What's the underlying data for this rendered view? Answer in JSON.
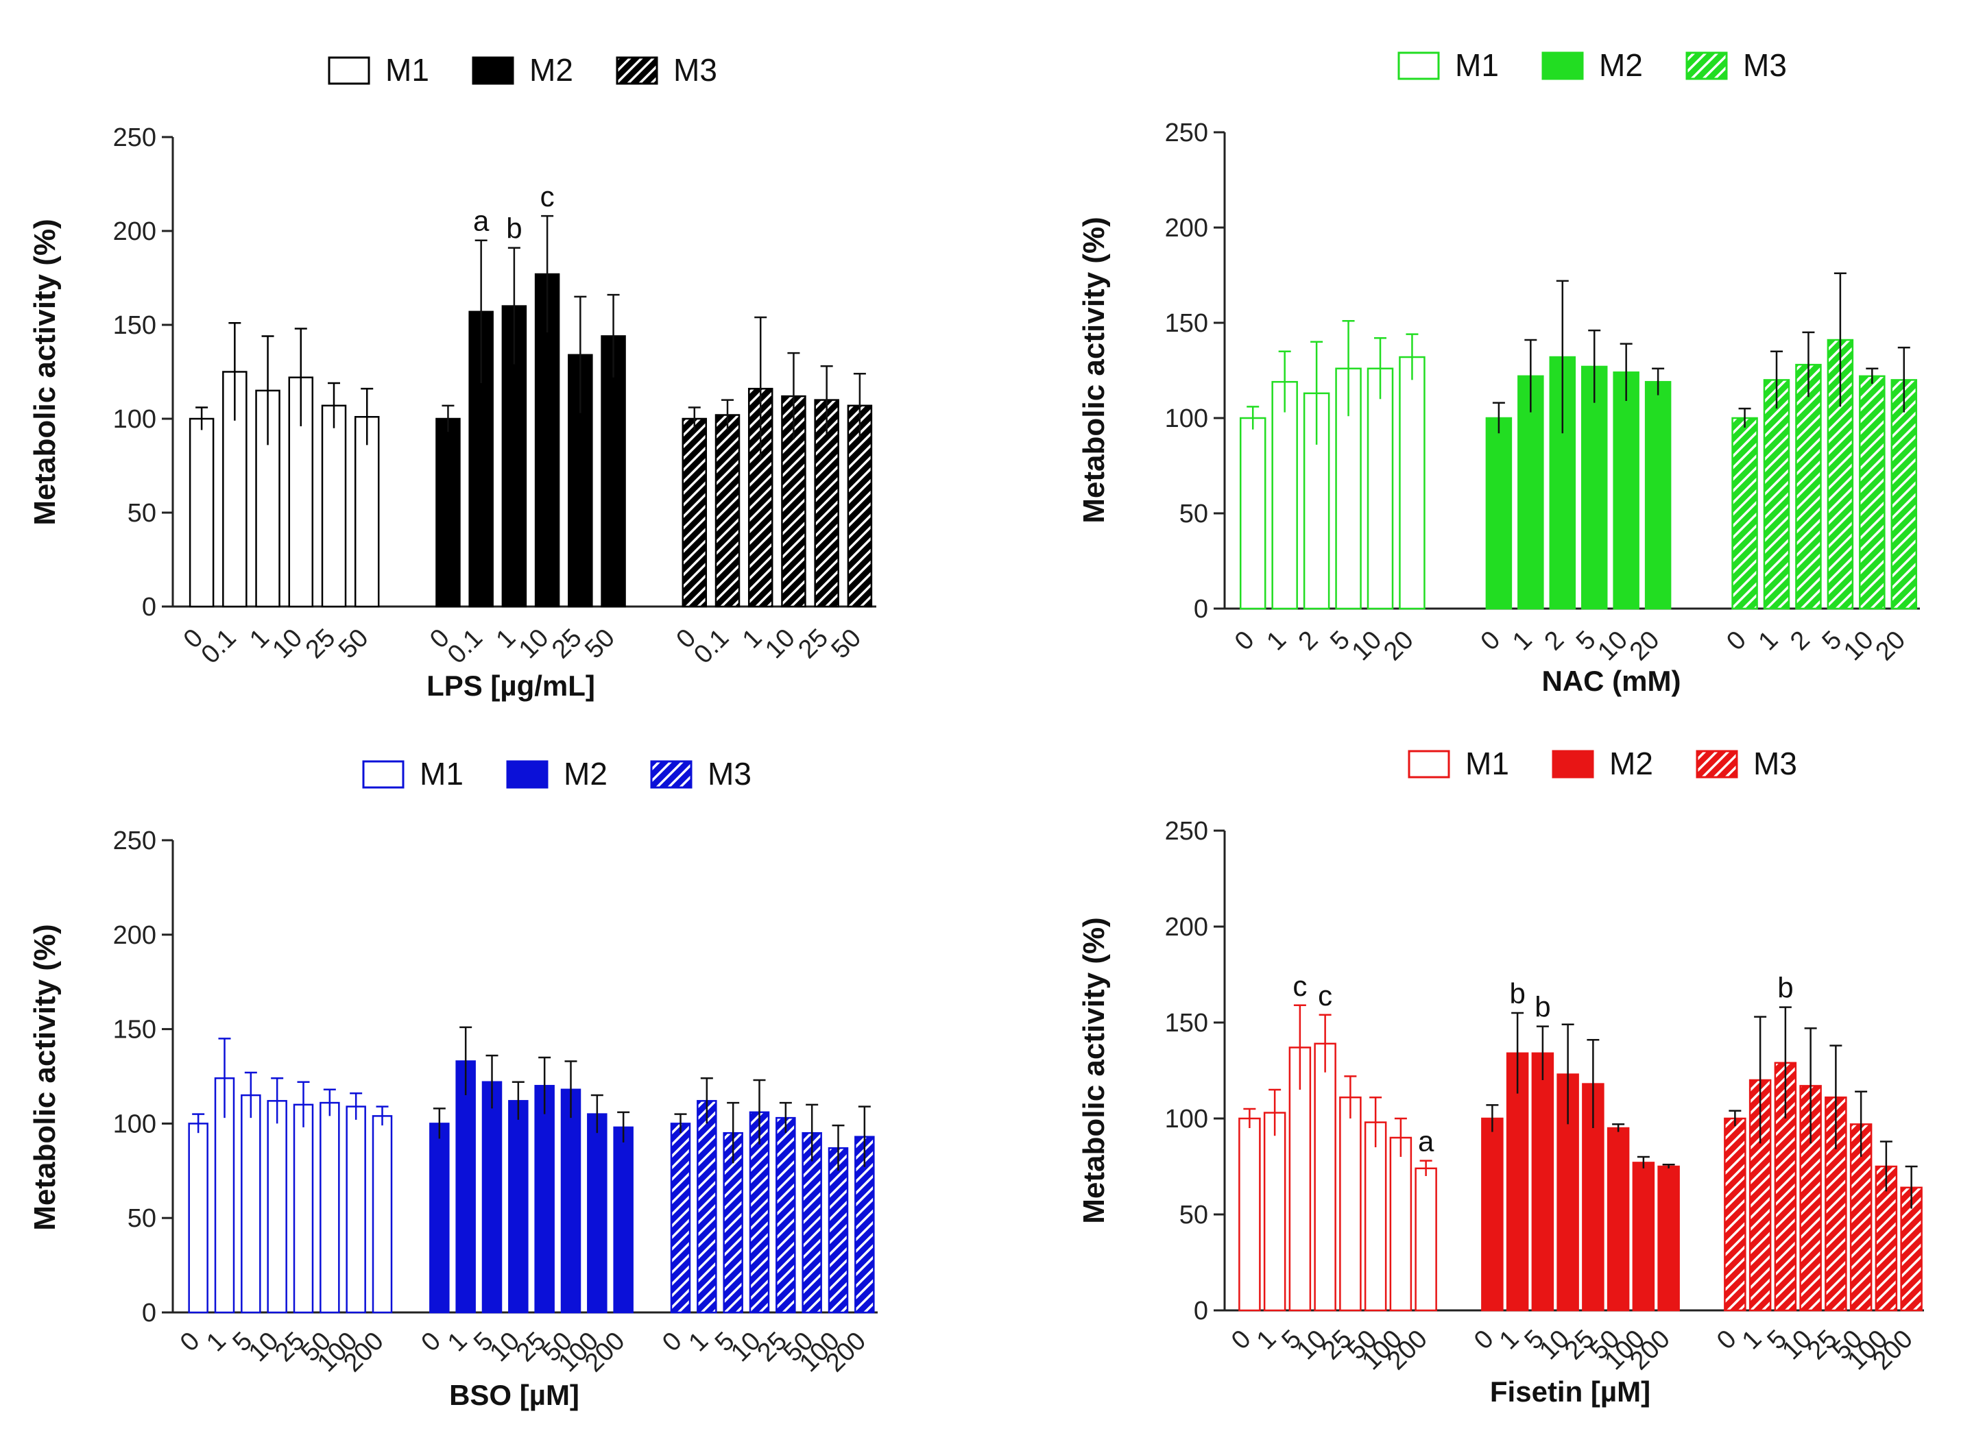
{
  "chart_data": [
    {
      "type": "bar",
      "panel": "top-left",
      "color": "#000000",
      "xlabel": "LPS [µg/mL]",
      "ylabel": "Metabolic activity (%)",
      "ylim": [
        0,
        250
      ],
      "yticks": [
        0,
        50,
        100,
        150,
        200,
        250
      ],
      "categories": [
        "0",
        "0.1",
        "1",
        "10",
        "25",
        "50"
      ],
      "legend": [
        "M1",
        "M2",
        "M3"
      ],
      "series": [
        {
          "name": "M1",
          "pattern": "open",
          "values": [
            100,
            125,
            115,
            122,
            107,
            101
          ],
          "errors": [
            6,
            26,
            29,
            26,
            12,
            15
          ],
          "labels": [
            "",
            "",
            "",
            "",
            "",
            ""
          ]
        },
        {
          "name": "M2",
          "pattern": "solid",
          "values": [
            100,
            157,
            160,
            177,
            134,
            144
          ],
          "errors": [
            7,
            38,
            31,
            31,
            31,
            22
          ],
          "labels": [
            "",
            "a",
            "b",
            "c",
            "",
            ""
          ]
        },
        {
          "name": "M3",
          "pattern": "hatched",
          "values": [
            100,
            102,
            116,
            112,
            110,
            107
          ],
          "errors": [
            6,
            8,
            38,
            23,
            18,
            17
          ],
          "labels": [
            "",
            "",
            "",
            "",
            "",
            ""
          ]
        }
      ]
    },
    {
      "type": "bar",
      "panel": "top-right",
      "color": "#22dd22",
      "xlabel": "NAC (mM)",
      "ylabel": "Metabolic activity (%)",
      "ylim": [
        0,
        250
      ],
      "yticks": [
        0,
        50,
        100,
        150,
        200,
        250
      ],
      "categories": [
        "0",
        "1",
        "2",
        "5",
        "10",
        "20"
      ],
      "legend": [
        "M1",
        "M2",
        "M3"
      ],
      "series": [
        {
          "name": "M1",
          "pattern": "open",
          "values": [
            100,
            119,
            113,
            126,
            126,
            132
          ],
          "errors": [
            6,
            16,
            27,
            25,
            16,
            12
          ],
          "labels": [
            "",
            "",
            "",
            "",
            "",
            ""
          ]
        },
        {
          "name": "M2",
          "pattern": "solid",
          "values": [
            100,
            122,
            132,
            127,
            124,
            119
          ],
          "errors": [
            8,
            19,
            40,
            19,
            15,
            7
          ],
          "labels": [
            "",
            "",
            "",
            "",
            "",
            ""
          ]
        },
        {
          "name": "M3",
          "pattern": "hatched",
          "values": [
            100,
            120,
            128,
            141,
            122,
            120
          ],
          "errors": [
            5,
            15,
            17,
            35,
            4,
            17
          ],
          "labels": [
            "",
            "",
            "",
            "",
            "",
            ""
          ]
        }
      ]
    },
    {
      "type": "bar",
      "panel": "bottom-left",
      "color": "#0b10d8",
      "xlabel": "BSO [µM]",
      "ylabel": "Metabolic activity (%)",
      "ylim": [
        0,
        250
      ],
      "yticks": [
        0,
        50,
        100,
        150,
        200,
        250
      ],
      "categories": [
        "0",
        "1",
        "5",
        "10",
        "25",
        "50",
        "100",
        "200"
      ],
      "legend": [
        "M1",
        "M2",
        "M3"
      ],
      "series": [
        {
          "name": "M1",
          "pattern": "open",
          "values": [
            100,
            124,
            115,
            112,
            110,
            111,
            109,
            104
          ],
          "errors": [
            5,
            21,
            12,
            12,
            12,
            7,
            7,
            5
          ],
          "labels": [
            "",
            "",
            "",
            "",
            "",
            "",
            "",
            ""
          ]
        },
        {
          "name": "M2",
          "pattern": "solid",
          "values": [
            100,
            133,
            122,
            112,
            120,
            118,
            105,
            98
          ],
          "errors": [
            8,
            18,
            14,
            10,
            15,
            15,
            10,
            8
          ],
          "labels": [
            "",
            "",
            "",
            "",
            "",
            "",
            "",
            ""
          ]
        },
        {
          "name": "M3",
          "pattern": "hatched",
          "values": [
            100,
            112,
            95,
            106,
            103,
            95,
            87,
            93
          ],
          "errors": [
            5,
            12,
            16,
            17,
            8,
            15,
            12,
            16
          ],
          "labels": [
            "",
            "",
            "",
            "",
            "",
            "",
            "",
            ""
          ]
        }
      ]
    },
    {
      "type": "bar",
      "panel": "bottom-right",
      "color": "#e81515",
      "xlabel": "Fisetin [µM]",
      "ylabel": "Metabolic activity (%)",
      "ylim": [
        0,
        250
      ],
      "yticks": [
        0,
        50,
        100,
        150,
        200,
        250
      ],
      "categories": [
        "0",
        "1",
        "5",
        "10",
        "25",
        "50",
        "100",
        "200"
      ],
      "legend": [
        "M1",
        "M2",
        "M3"
      ],
      "series": [
        {
          "name": "M1",
          "pattern": "open",
          "values": [
            100,
            103,
            137,
            139,
            111,
            98,
            90,
            74
          ],
          "errors": [
            5,
            12,
            22,
            15,
            11,
            13,
            10,
            4
          ],
          "labels": [
            "",
            "",
            "c",
            "c",
            "",
            "",
            "",
            "a"
          ]
        },
        {
          "name": "M2",
          "pattern": "solid",
          "values": [
            100,
            134,
            134,
            123,
            118,
            95,
            77,
            75
          ],
          "errors": [
            7,
            21,
            14,
            26,
            23,
            2,
            3,
            1
          ],
          "labels": [
            "",
            "b",
            "b",
            "",
            "",
            "",
            "",
            ""
          ]
        },
        {
          "name": "M3",
          "pattern": "hatched",
          "values": [
            100,
            120,
            129,
            117,
            111,
            97,
            75,
            64
          ],
          "errors": [
            4,
            33,
            29,
            30,
            27,
            17,
            13,
            11
          ],
          "labels": [
            "",
            "",
            "b",
            "",
            "",
            "",
            "",
            ""
          ]
        }
      ]
    }
  ]
}
